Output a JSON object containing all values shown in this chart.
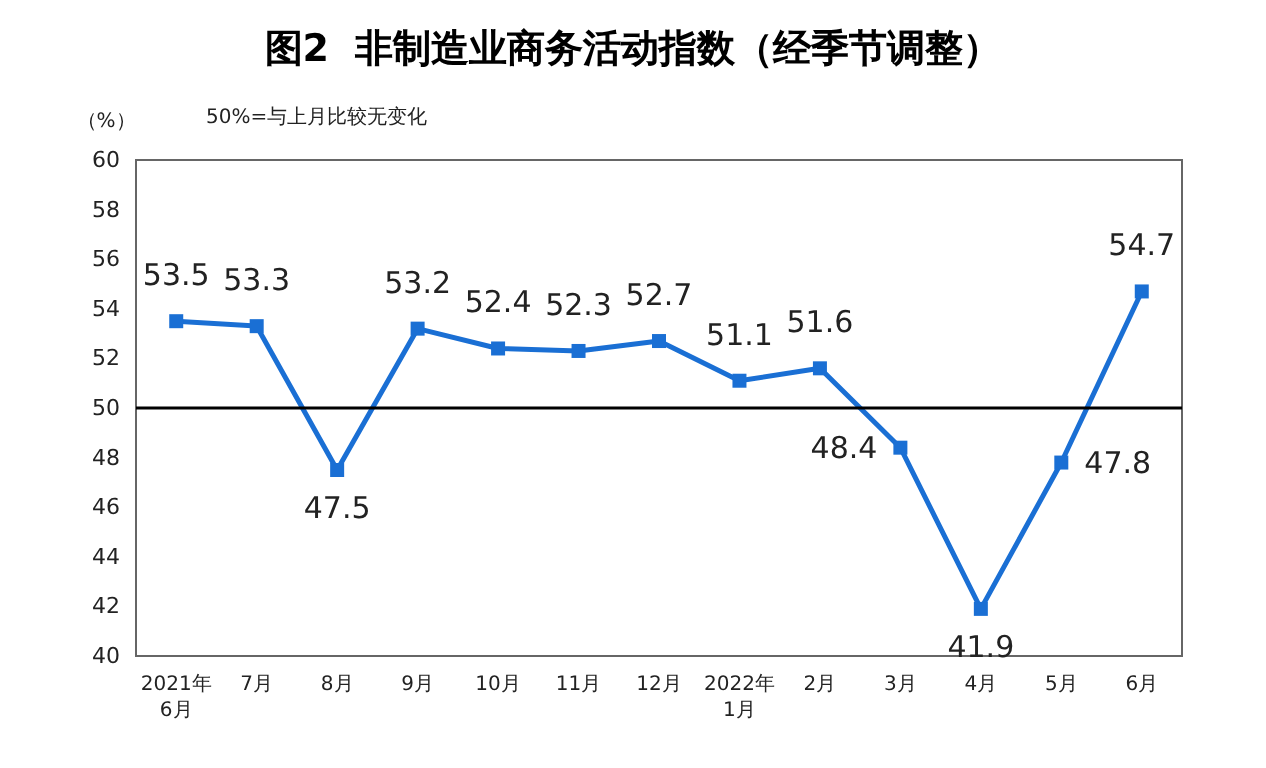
{
  "chart_data": {
    "type": "line",
    "title": "图2  非制造业商务活动指数（经季节调整）",
    "ylabel": "（%）",
    "annotations": [
      "50%=与上月比较无变化"
    ],
    "categories": [
      "2021年\n6月",
      "7月",
      "8月",
      "9月",
      "10月",
      "11月",
      "12月",
      "2022年\n1月",
      "2月",
      "3月",
      "4月",
      "5月",
      "6月"
    ],
    "series": [
      {
        "color": "#1a6fd4",
        "values": [
          53.5,
          53.3,
          47.5,
          53.2,
          52.4,
          52.3,
          52.7,
          51.1,
          51.6,
          48.4,
          41.9,
          47.8,
          54.7
        ]
      }
    ],
    "ylim": [
      40,
      60
    ],
    "yticks": [
      40,
      42,
      44,
      46,
      48,
      50,
      52,
      54,
      56,
      58,
      60
    ],
    "ref_lines": [
      {
        "axis": "y",
        "value": 50,
        "color": "#000000"
      }
    ],
    "data_labels": true,
    "marker": "square",
    "line_style": "solid",
    "grid": false
  }
}
